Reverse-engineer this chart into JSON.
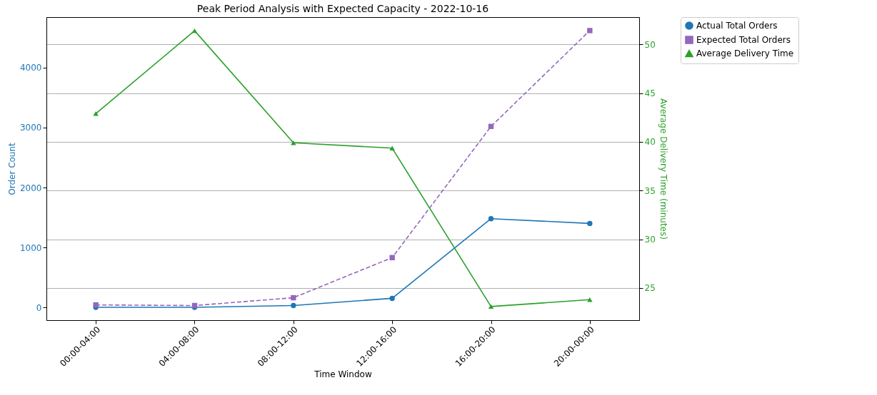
{
  "chart_data": {
    "type": "line",
    "title": "Peak Period Analysis with Expected Capacity - 2022-10-16",
    "xlabel": "Time Window",
    "ylabel": "Order Count",
    "y2label": "Average Delivery Time (minutes)",
    "categories": [
      "00:00-04:00",
      "04:00-08:00",
      "08:00-12:00",
      "12:00-16:00",
      "16:00-20:00",
      "20:00-00:00"
    ],
    "ylim": [
      -214,
      4845
    ],
    "yticks": [
      0,
      1000,
      2000,
      3000,
      4000
    ],
    "y2lim": [
      21.7,
      52.8
    ],
    "y2ticks": [
      25,
      30,
      35,
      40,
      45,
      50
    ],
    "grid": "y2",
    "legend": "top right",
    "series": [
      {
        "name": "Actual Total Orders",
        "color": "#1f77b4",
        "marker": "circle",
        "line_style": "solid",
        "values": [
          0,
          0,
          30,
          150,
          1480,
          1400
        ]
      },
      {
        "name": "Expected Total Orders",
        "color": "#9467bd",
        "marker": "square",
        "line_style": "dashed",
        "values": [
          40,
          30,
          160,
          830,
          3020,
          4620
        ]
      },
      {
        "name": "Average Delivery Time",
        "color": "#2ca02c",
        "marker": "triangle",
        "line_style": "solid",
        "axis": "y2",
        "values": [
          42.9,
          51.4,
          39.9,
          39.35,
          23.1,
          23.8
        ]
      }
    ]
  }
}
